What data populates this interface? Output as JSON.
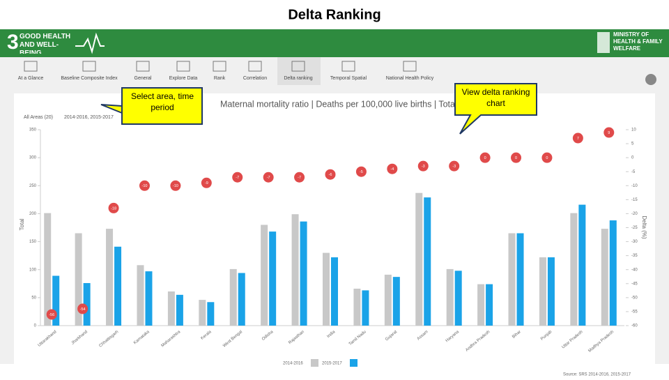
{
  "slide_title": "Delta Ranking",
  "header": {
    "goal_number": "3",
    "goal_text": "GOOD HEALTH AND WELL-BEING",
    "ministry": "MINISTRY OF HEALTH & FAMILY WELFARE"
  },
  "toolbar": [
    "At a Glance",
    "Baseline Composite Index",
    "General",
    "Explore Data",
    "Rank",
    "Correlation",
    "Delta ranking",
    "Temporal Spatial",
    "National Health Policy"
  ],
  "filters": [
    "All Areas (20)",
    "2014-2016, 2015-2017"
  ],
  "callouts": [
    "Select area, time period",
    "View delta ranking chart"
  ],
  "source": "Source: SRS 2014-2016, 2015-2017",
  "chart_data": {
    "type": "bar",
    "title": "Maternal mortality ratio | Deaths per 100,000 live births | Total",
    "y_label": "Total",
    "y2_label": "Delta (%)",
    "categories": [
      "Uttarakhand",
      "Jharkhand",
      "Chhattisgarh",
      "Karnataka",
      "Maharashtra",
      "Kerala",
      "West Bengal",
      "Odisha",
      "Rajasthan",
      "India",
      "Tamil Nadu",
      "Gujarat",
      "Assam",
      "Haryana",
      "Andhra Pradesh",
      "Bihar",
      "Punjab",
      "Uttar Pradesh",
      "Madhya Pradesh"
    ],
    "series": [
      {
        "name": "2014-2016",
        "color": "#c8c8c8",
        "values": [
          201,
          165,
          173,
          108,
          61,
          46,
          101,
          180,
          199,
          130,
          66,
          91,
          237,
          101,
          74,
          165,
          122,
          201,
          173
        ]
      },
      {
        "name": "2015-2017",
        "color": "#1aa3e8",
        "values": [
          89,
          76,
          141,
          97,
          55,
          42,
          94,
          168,
          186,
          122,
          63,
          87,
          229,
          98,
          74,
          165,
          122,
          216,
          188
        ]
      },
      {
        "name": "Delta",
        "color": "#e04a4a",
        "type": "scatter",
        "axis": "y2",
        "values": [
          -56,
          -54,
          -18,
          -10,
          -10,
          -9,
          -7,
          -7,
          -7,
          -6,
          -5,
          -4,
          -3,
          -3,
          0,
          0,
          0,
          7,
          9
        ]
      }
    ],
    "ylim": [
      0,
      350
    ],
    "yticks": [
      0,
      50,
      100,
      150,
      200,
      250,
      300,
      350
    ],
    "y2lim": [
      -60,
      10
    ],
    "y2ticks": [
      10,
      5,
      0,
      -5,
      -10,
      -15,
      -20,
      -25,
      -30,
      -35,
      -40,
      -45,
      -50,
      -55,
      -60
    ],
    "legend": "bottom"
  }
}
